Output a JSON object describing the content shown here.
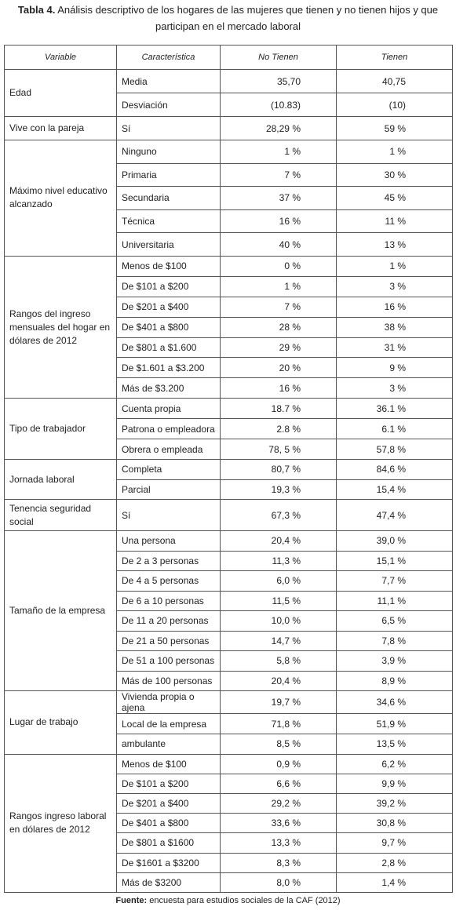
{
  "title": {
    "label": "Tabla 4.",
    "text": "Análisis descriptivo de los hogares de las mujeres que tienen y no tienen hijos y que participan en el mercado laboral"
  },
  "table": {
    "header": [
      "Variable",
      "Característica",
      "No Tienen",
      "Tienen"
    ],
    "groups": [
      {
        "variable": "Edad",
        "rows": [
          [
            "Media",
            "35,70",
            "40,75"
          ],
          [
            "Desviación",
            "(10.83)",
            "(10)"
          ]
        ]
      },
      {
        "variable": "Vive con la pareja",
        "rows": [
          [
            "Sí",
            "28,29 %",
            "59 %"
          ]
        ]
      },
      {
        "variable": "Máximo nivel educativo alcanzado",
        "rows": [
          [
            "Ninguno",
            "1 %",
            "1 %"
          ],
          [
            "Primaria",
            "7 %",
            "30 %"
          ],
          [
            "Secundaria",
            "37 %",
            "45 %"
          ],
          [
            "Técnica",
            "16 %",
            "11 %"
          ],
          [
            "Universitaria",
            "40 %",
            "13 %"
          ]
        ]
      },
      {
        "variable": "Rangos del ingreso mensuales del hogar en dólares de 2012",
        "rows": [
          [
            "Menos de $100",
            "0 %",
            "1 %"
          ],
          [
            "De $101 a $200",
            "1 %",
            "3 %"
          ],
          [
            "De $201 a $400",
            "7 %",
            "16 %"
          ],
          [
            "De $401 a $800",
            "28 %",
            "38 %"
          ],
          [
            "De $801 a $1.600",
            "29 %",
            "31 %"
          ],
          [
            "De $1.601 a $3.200",
            "20 %",
            "9 %"
          ],
          [
            "Más de $3.200",
            "16 %",
            "3 %"
          ]
        ]
      },
      {
        "variable": "Tipo de trabajador",
        "rows": [
          [
            "Cuenta propia",
            "18.7 %",
            "36.1 %"
          ],
          [
            "Patrona o empleadora",
            "2.8 %",
            "6.1 %"
          ],
          [
            "Obrera o empleada",
            "78, 5 %",
            "57,8 %"
          ]
        ]
      },
      {
        "variable": "Jornada laboral",
        "rows": [
          [
            "Completa",
            "80,7 %",
            "84,6 %"
          ],
          [
            "Parcial",
            "19,3 %",
            "15,4 %"
          ]
        ]
      },
      {
        "variable": "Tenencia seguridad social",
        "rows": [
          [
            "Sí",
            "67,3 %",
            "47,4 %"
          ]
        ]
      },
      {
        "variable": "Tamaño de la empresa",
        "rows": [
          [
            "Una persona",
            "20,4 %",
            "39,0 %"
          ],
          [
            "De 2 a 3 personas",
            "11,3 %",
            "15,1 %"
          ],
          [
            "De 4 a 5 personas",
            "6,0 %",
            "7,7 %"
          ],
          [
            "De 6 a 10 personas",
            "11,5 %",
            "11,1 %"
          ],
          [
            "De 11 a 20 personas",
            "10,0 %",
            "6,5 %"
          ],
          [
            "De 21 a 50 personas",
            "14,7 %",
            "7,8 %"
          ],
          [
            "De 51 a 100 personas",
            "5,8 %",
            "3,9 %"
          ],
          [
            "Más de 100 personas",
            "20,4 %",
            "8,9 %"
          ]
        ]
      },
      {
        "variable": "Lugar de trabajo",
        "rows": [
          [
            "Vivienda propia o ajena",
            "19,7 %",
            "34,6 %"
          ],
          [
            "Local de la empresa",
            "71,8 %",
            "51,9 %"
          ],
          [
            "ambulante",
            "8,5 %",
            "13,5 %"
          ]
        ]
      },
      {
        "variable": "Rangos ingreso laboral en dólares de 2012",
        "rows": [
          [
            "Menos de $100",
            "0,9 %",
            "6,2 %"
          ],
          [
            "De $101 a $200",
            "6,6 %",
            "9,9 %"
          ],
          [
            "De $201 a $400",
            "29,2 %",
            "39,2 %"
          ],
          [
            "De $401 a $800",
            "33,6 %",
            "30,8 %"
          ],
          [
            "De $801 a $1600",
            "13,3 %",
            "9,7 %"
          ],
          [
            "De $1601 a $3200",
            "8,3 %",
            "2,8 %"
          ],
          [
            "Más de $3200",
            "8,0 %",
            "1,4 %"
          ]
        ]
      }
    ]
  },
  "footer": {
    "label": "Fuente:",
    "text": "encuesta para estudios sociales de la CAF (2012)"
  }
}
